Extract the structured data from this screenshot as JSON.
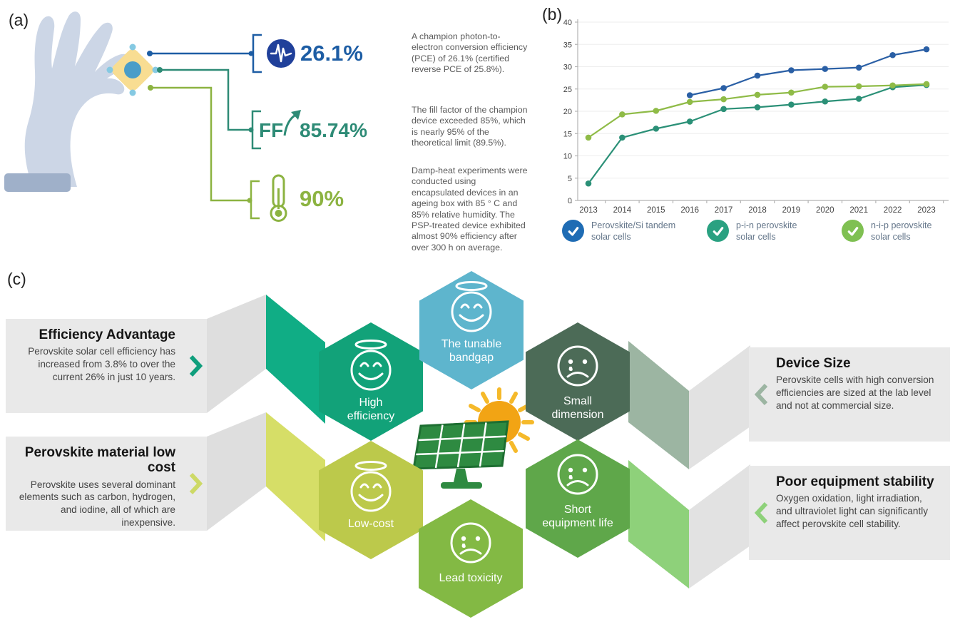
{
  "figure": {
    "panel_a_label": "(a)",
    "panel_b_label": "(b)",
    "panel_c_label": "(c)"
  },
  "panel_a": {
    "callouts": [
      {
        "icon": "pulse-icon",
        "value": "26.1%",
        "color": "#1d5da4",
        "description": "A champion photon-to-electron conversion efficiency (PCE) of 26.1% (certified reverse PCE of 25.8%)."
      },
      {
        "icon": "rising-arrow-icon",
        "prefix": "FF",
        "value": "85.74%",
        "color": "#2e8b76",
        "description": "The fill factor of the champion device exceeded 85%, which is nearly 95% of the theoretical limit (89.5%)."
      },
      {
        "icon": "thermometer-icon",
        "value": "90%",
        "color": "#8cb341",
        "description": "Damp-heat experiments were conducted using encapsulated devices in an ageing box with 85 ° C and 85% relative humidity. The PSP-treated device exhibited almost 90% efficiency after over 300 h on average."
      }
    ]
  },
  "chart_data": {
    "type": "line",
    "categories": [
      "2013",
      "2014",
      "2015",
      "2016",
      "2017",
      "2018",
      "2019",
      "2020",
      "2021",
      "2022",
      "2023"
    ],
    "series": [
      {
        "name": "Perovskite/Si tandem solar cells",
        "color": "#2a5fa5",
        "values": [
          null,
          null,
          null,
          23.6,
          25.2,
          28.0,
          29.2,
          29.5,
          29.8,
          32.6,
          33.9
        ]
      },
      {
        "name": "p-i-n perovskite solar cells",
        "color": "#2b9077",
        "values": [
          3.8,
          14.1,
          16.1,
          17.7,
          20.5,
          20.9,
          21.5,
          22.2,
          22.8,
          25.4,
          25.9
        ]
      },
      {
        "name": "n-i-p perovskite solar cells",
        "color": "#8fbb47",
        "values": [
          14.1,
          19.3,
          20.1,
          22.1,
          22.7,
          23.7,
          24.2,
          25.5,
          25.6,
          25.8,
          26.1
        ]
      }
    ],
    "title": "",
    "xlabel": "",
    "ylabel": "",
    "ylim": [
      0,
      40
    ],
    "ytick_step": 5,
    "grid": true,
    "legend_position": "bottom",
    "legend_check_colors": [
      "#1f6cb4",
      "#2aa181",
      "#7fc052"
    ]
  },
  "panel_c": {
    "hexagons": [
      {
        "id": "high-efficiency",
        "label": "High efficiency",
        "sentiment": "positive",
        "color": "#12a279"
      },
      {
        "id": "tunable-bandgap",
        "label": "The tunable bandgap",
        "sentiment": "positive",
        "color": "#5eb5cd"
      },
      {
        "id": "small-dimension",
        "label": "Small dimension",
        "sentiment": "negative",
        "color": "#4c6b57"
      },
      {
        "id": "low-cost",
        "label": "Low-cost",
        "sentiment": "positive",
        "color": "#bcc94b"
      },
      {
        "id": "lead-toxicity",
        "label": "Lead toxicity",
        "sentiment": "negative",
        "color": "#83b944"
      },
      {
        "id": "short-equipment-life",
        "label": "Short equipment life",
        "sentiment": "negative",
        "color": "#5fa74a"
      }
    ],
    "left_boxes": [
      {
        "title": "Efficiency Advantage",
        "chevron_color": "#0f9e7c",
        "body": "Perovskite solar cell efficiency has increased from 3.8% to over the current 26% in just 10 years."
      },
      {
        "title": "Perovskite material low cost",
        "chevron_color": "#cdd966",
        "body": "Perovskite uses several dominant elements such as carbon, hydrogen, and iodine, all of which are inexpensive."
      }
    ],
    "right_boxes": [
      {
        "title": "Device Size",
        "chevron_color": "#9cb5a2",
        "body": "Perovskite cells with high conversion efficiencies are sized at the lab level and not at commercial size."
      },
      {
        "title": "Poor equipment stability",
        "chevron_color": "#8ed17a",
        "body": "Oxygen oxidation, light irradiation, and ultraviolet light can significantly affect perovskite cell stability."
      }
    ]
  }
}
